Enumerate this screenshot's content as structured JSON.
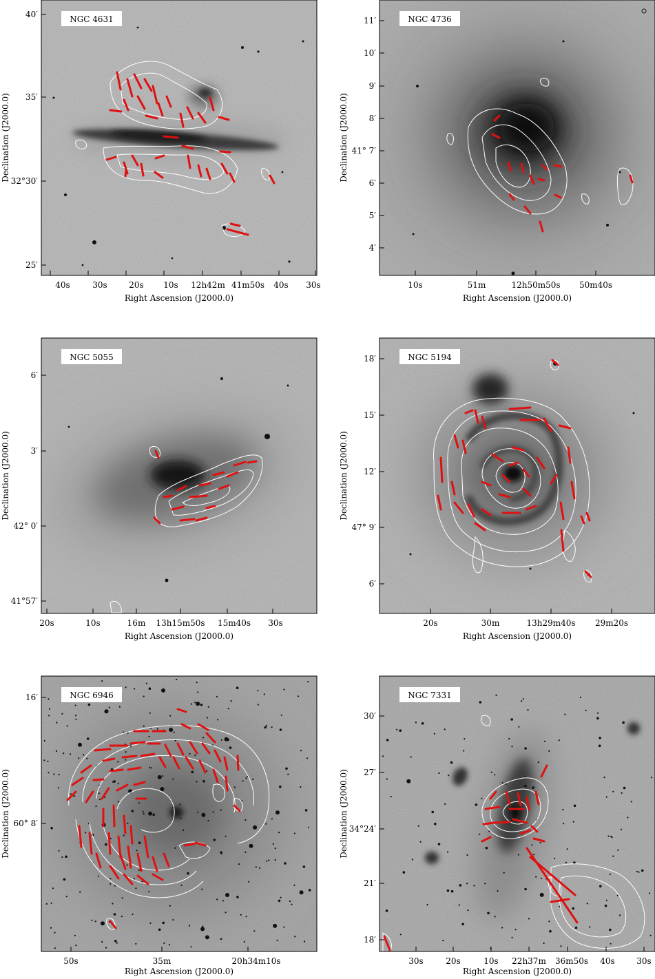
{
  "figure": {
    "x_axis_label": "Right Ascension (J2000.0)",
    "y_axis_label": "Declination (J2000.0)",
    "panels": [
      {
        "galaxy": "NGC 4631",
        "x_ticks": [
          "40s",
          "30s",
          "20s",
          "10s",
          "12h42m",
          "41m50s",
          "40s",
          "30s"
        ],
        "y_ticks": [
          "40′",
          "35′",
          "32°30′",
          "25′"
        ],
        "image": "edge-on disk"
      },
      {
        "galaxy": "NGC 4736",
        "x_ticks": [
          "10s",
          "51m",
          "12h50m50s",
          "50m40s"
        ],
        "y_ticks": [
          "11′",
          "10′",
          "9′",
          "8′",
          "41° 7′",
          "6′",
          "5′",
          "4′"
        ],
        "image": "bright round core"
      },
      {
        "galaxy": "NGC 5055",
        "x_ticks": [
          "20s",
          "10s",
          "16m",
          "13h15m50s",
          "15m40s",
          "30s"
        ],
        "y_ticks": [
          "6′",
          "3′",
          "42° 0′",
          "41°57′"
        ],
        "image": "elongated flocculent disk"
      },
      {
        "galaxy": "NGC 5194",
        "x_ticks": [
          "20s",
          "30m",
          "13h29m40s",
          "29m20s"
        ],
        "y_ticks": [
          "18′",
          "15′",
          "12′",
          "47° 9′",
          "6′"
        ],
        "image": "grand design spiral"
      },
      {
        "galaxy": "NGC 6946",
        "x_ticks": [
          "50s",
          "35m",
          "20h34m10s"
        ],
        "y_ticks": [
          "16′",
          "60° 8′"
        ],
        "image": "face-on spiral, star field"
      },
      {
        "galaxy": "NGC 7331",
        "x_ticks": [
          "30s",
          "20s",
          "10s",
          "22h37m",
          "36m50s",
          "40s",
          "30s"
        ],
        "y_ticks": [
          "30′",
          "27′",
          "34°24′",
          "21′",
          "18′"
        ],
        "image": "inclined spiral, star field"
      }
    ]
  }
}
